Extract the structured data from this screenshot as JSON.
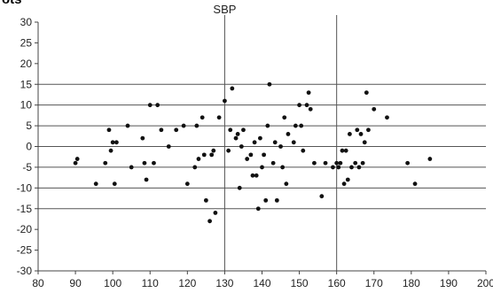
{
  "partial_heading": "ots",
  "chart_data": {
    "type": "scatter",
    "title": "",
    "xlabel": "",
    "ylabel": "",
    "xlim": [
      80,
      200
    ],
    "ylim": [
      -30,
      30
    ],
    "x_ticks": [
      80,
      90,
      100,
      110,
      120,
      130,
      140,
      150,
      160,
      170,
      180,
      190,
      200
    ],
    "y_ticks": [
      30,
      25,
      20,
      15,
      10,
      5,
      0,
      -5,
      -10,
      -15,
      -20,
      -25,
      -30
    ],
    "horizontal_reference_lines": [
      15,
      10,
      5,
      0,
      -5,
      -10,
      -15
    ],
    "vertical_reference_lines": [
      130,
      160
    ],
    "annotations": [
      {
        "text": "SBP",
        "x": 130
      }
    ],
    "grid": false,
    "series": [
      {
        "points": [
          {
            "x": 90,
            "y": -4
          },
          {
            "x": 90.5,
            "y": -3
          },
          {
            "x": 95.5,
            "y": -9
          },
          {
            "x": 98,
            "y": -4
          },
          {
            "x": 99,
            "y": 4
          },
          {
            "x": 99.5,
            "y": -1
          },
          {
            "x": 100,
            "y": 1
          },
          {
            "x": 100.5,
            "y": -9
          },
          {
            "x": 101,
            "y": 1
          },
          {
            "x": 104,
            "y": 5
          },
          {
            "x": 105,
            "y": -5
          },
          {
            "x": 108,
            "y": 2
          },
          {
            "x": 108.5,
            "y": -4
          },
          {
            "x": 109,
            "y": -8
          },
          {
            "x": 110,
            "y": 10
          },
          {
            "x": 111,
            "y": -4
          },
          {
            "x": 112,
            "y": 10
          },
          {
            "x": 113,
            "y": 4
          },
          {
            "x": 115,
            "y": 0
          },
          {
            "x": 117,
            "y": 4
          },
          {
            "x": 119,
            "y": 5
          },
          {
            "x": 120,
            "y": -9
          },
          {
            "x": 122,
            "y": -5
          },
          {
            "x": 122.5,
            "y": 5
          },
          {
            "x": 123,
            "y": -3
          },
          {
            "x": 124,
            "y": 7
          },
          {
            "x": 124.5,
            "y": -2
          },
          {
            "x": 125,
            "y": -13
          },
          {
            "x": 126,
            "y": -18
          },
          {
            "x": 126.5,
            "y": -2
          },
          {
            "x": 127,
            "y": -1
          },
          {
            "x": 127.5,
            "y": -16
          },
          {
            "x": 128.5,
            "y": 7
          },
          {
            "x": 130,
            "y": 11
          },
          {
            "x": 131,
            "y": -1
          },
          {
            "x": 131.5,
            "y": 4
          },
          {
            "x": 132,
            "y": 14
          },
          {
            "x": 133,
            "y": 2
          },
          {
            "x": 133.5,
            "y": 3
          },
          {
            "x": 134,
            "y": -10
          },
          {
            "x": 134.5,
            "y": 0
          },
          {
            "x": 135,
            "y": 4
          },
          {
            "x": 136,
            "y": -3
          },
          {
            "x": 137,
            "y": -2
          },
          {
            "x": 137.5,
            "y": -7
          },
          {
            "x": 138,
            "y": 1
          },
          {
            "x": 138.5,
            "y": -7
          },
          {
            "x": 139,
            "y": -15
          },
          {
            "x": 139.5,
            "y": 2
          },
          {
            "x": 140,
            "y": -5
          },
          {
            "x": 140.5,
            "y": -2
          },
          {
            "x": 141,
            "y": -13
          },
          {
            "x": 141.5,
            "y": 5
          },
          {
            "x": 142,
            "y": 15
          },
          {
            "x": 143,
            "y": -4
          },
          {
            "x": 143.5,
            "y": 1
          },
          {
            "x": 144,
            "y": -13
          },
          {
            "x": 145,
            "y": 0
          },
          {
            "x": 145.5,
            "y": -5
          },
          {
            "x": 146,
            "y": 7
          },
          {
            "x": 146.5,
            "y": -9
          },
          {
            "x": 147,
            "y": 3
          },
          {
            "x": 148.5,
            "y": 1
          },
          {
            "x": 149,
            "y": 5
          },
          {
            "x": 150,
            "y": 10
          },
          {
            "x": 150.5,
            "y": 5
          },
          {
            "x": 151,
            "y": -1
          },
          {
            "x": 152,
            "y": 10
          },
          {
            "x": 152.5,
            "y": 13
          },
          {
            "x": 153,
            "y": 9
          },
          {
            "x": 154,
            "y": -4
          },
          {
            "x": 156,
            "y": -12
          },
          {
            "x": 157,
            "y": -4
          },
          {
            "x": 159,
            "y": -5
          },
          {
            "x": 160,
            "y": -4
          },
          {
            "x": 160.5,
            "y": -5
          },
          {
            "x": 161,
            "y": -4
          },
          {
            "x": 161.5,
            "y": -1
          },
          {
            "x": 162,
            "y": -9
          },
          {
            "x": 162.5,
            "y": -1
          },
          {
            "x": 163,
            "y": -8
          },
          {
            "x": 163.5,
            "y": 3
          },
          {
            "x": 164,
            "y": -5
          },
          {
            "x": 165,
            "y": -4
          },
          {
            "x": 165.5,
            "y": 4
          },
          {
            "x": 166,
            "y": -5
          },
          {
            "x": 166.5,
            "y": 3
          },
          {
            "x": 167,
            "y": -4
          },
          {
            "x": 167.5,
            "y": 1
          },
          {
            "x": 168,
            "y": 13
          },
          {
            "x": 168.5,
            "y": 4
          },
          {
            "x": 170,
            "y": 9
          },
          {
            "x": 173.5,
            "y": 7
          },
          {
            "x": 179,
            "y": -4
          },
          {
            "x": 181,
            "y": -9
          },
          {
            "x": 185,
            "y": -3
          }
        ]
      }
    ]
  }
}
